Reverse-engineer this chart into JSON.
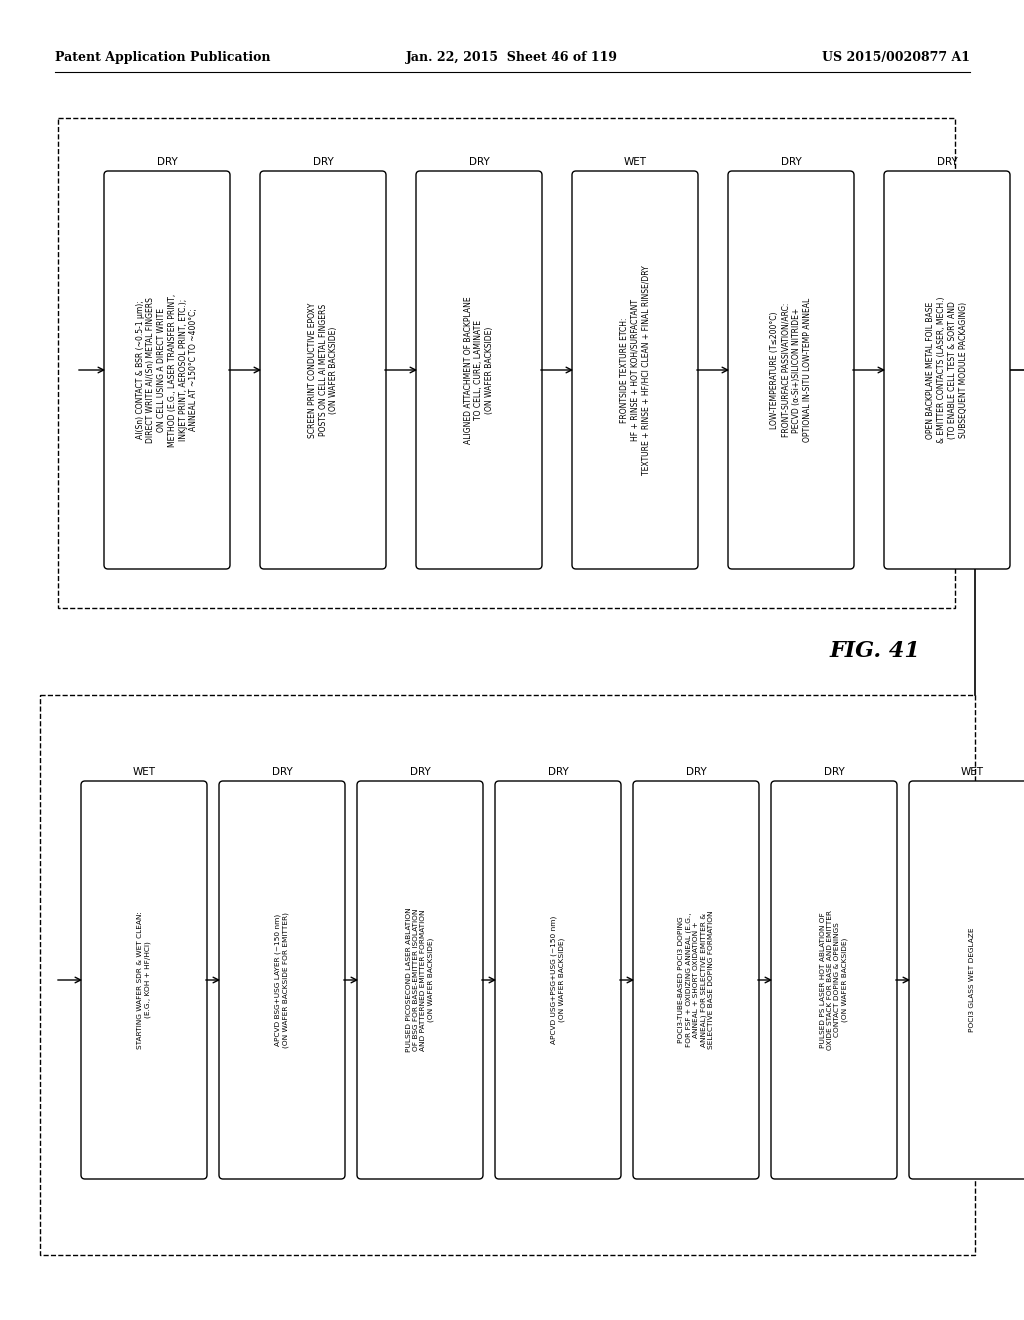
{
  "header_left": "Patent Application Publication",
  "header_center": "Jan. 22, 2015  Sheet 46 of 119",
  "header_right": "US 2015/0020877 A1",
  "fig_label": "FIG. 41",
  "top_row_boxes": [
    {
      "tag": "DRY",
      "text": "Al(Sn) CONTACT & BSR (~0.5-1 μm);\nDIRECT WRITE Al/(Sn) METAL FINGERS\nON CELL USING A DIRECT WRITE\nMETHOD (E.G., LASER TRANSFER PRINT,\nINKJET PRINT, AEROSOL PRINT, ETC.);\nANNEAL AT ~150°C TO ~400°C;"
    },
    {
      "tag": "DRY",
      "text": "SCREEN PRINT CONDUCTIVE EPOXY\nPOSTS ON CELL Al METAL FINGERS\n(ON WAFER BACKSIDE)"
    },
    {
      "tag": "DRY",
      "text": "ALIGNED ATTACHMENT OF BACKPLANE\nTO CELL, CURE, LAMINATE\n(ON WAFER BACKSIDE)"
    },
    {
      "tag": "WET",
      "text": "FRONTSIDE TEXTURE ETCH:\nHF + RINSE + HOT KOH/SURFACTANT\nTEXTURE + RINSE + HF/HCl CLEAN + FINAL RINSE/DRY"
    },
    {
      "tag": "DRY",
      "text": "LOW-TEMPERATURE (T≤200°C)\nFRONT-SURFACE PASSIVATION/ARC:\nPECVD (α-Si+)SILICON NITRIDE+\nOPTIONAL IN-SITU LOW-TEMP ANNEAL"
    },
    {
      "tag": "DRY",
      "text": "OPEN BACKPLANE METAL FOIL BASE\n& EMITTER CONTACTS (LASER, MECH.)\n(TO ENABLE CELL TEST & SORT AND\nSUBSEQUENT MODULE PACKAGING)"
    }
  ],
  "bottom_row_boxes": [
    {
      "tag": "WET",
      "text": "STARTING WAFER SDR & WET CLEAN:\n(E.G., KOH + HF/HCl)"
    },
    {
      "tag": "DRY",
      "text": "APCVD BSG+USG LAYER (~150 nm)\n(ON WAFER BACKSIDE FOR EMITTER)"
    },
    {
      "tag": "DRY",
      "text": "PULSED PICOSECOND LASER ABLATION\nOF BSG FOR BASE-EMITTER ISOLATION\nAND PATTERNED EMITTER FORMATION\n(ON WAFER BACKSIDE)"
    },
    {
      "tag": "DRY",
      "text": "APCVD USG+PSG+USG (~150 nm)\n(ON WAFER BACKSIDE)"
    },
    {
      "tag": "DRY",
      "text": "POCl3-TUBE-BASED POCl3 DOPING\nFOR FSF + OXIDIZING ANNEAL (E.G.,\nANNEAL + SHORT OXIDATION +\nANNEAL) FOR SELECTIVE EMITTER &\nSELECTIVE BASE DOPING FORMATION"
    },
    {
      "tag": "DRY",
      "text": "PULSED PS LASER HOT ABLATION OF\nOXIDE STACK FOR BASE AND EMITTER\nCONTACT DOPING & OPENINGS\n(ON WAFER BACKSIDE)"
    },
    {
      "tag": "WET",
      "text": "POCl3 GLASS WET DEGLAZE"
    }
  ],
  "bg_color": "#ffffff",
  "box_fill": "#ffffff",
  "box_edge": "#000000",
  "text_color": "#000000",
  "arrow_color": "#000000"
}
